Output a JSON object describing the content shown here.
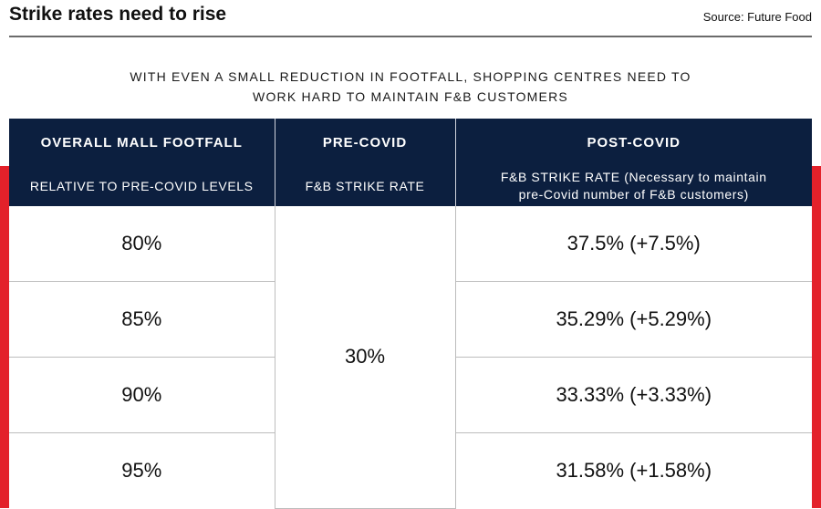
{
  "header": {
    "headline": "Strike rates need to rise",
    "source": "Source: Future Food"
  },
  "subtitle": {
    "line1": "With even a small reduction in footfall, shopping centres need to",
    "line2": "work hard to maintain F&B customers"
  },
  "table": {
    "headers": [
      "OVERALL MALL FOOTFALL",
      "PRE-COVID",
      "POST-COVID"
    ],
    "subheaders": {
      "col1": "RELATIVE TO PRE-COVID LEVELS",
      "col2": "F&B STRIKE RATE",
      "col3_line1": "F&B STRIKE RATE (Necessary to maintain",
      "col3_line2": "pre-Covid number of F&B customers)"
    },
    "pre_covid_rate": "30%",
    "rows": [
      {
        "footfall": "80%",
        "post_covid": "37.5% (+7.5%)"
      },
      {
        "footfall": "85%",
        "post_covid": "35.29% (+5.29%)"
      },
      {
        "footfall": "90%",
        "post_covid": "33.33% (+3.33%)"
      },
      {
        "footfall": "95%",
        "post_covid": "31.58% (+1.58%)"
      }
    ]
  },
  "colors": {
    "navy_header": "#0c1f3f",
    "accent_red": "#e3212a"
  }
}
